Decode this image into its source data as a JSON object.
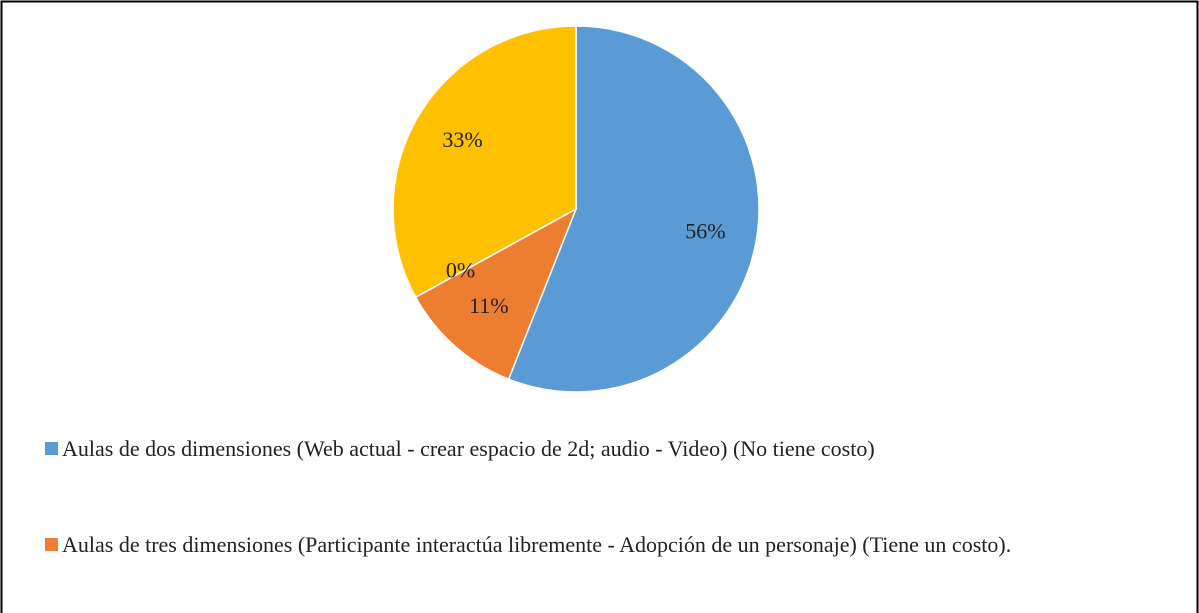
{
  "chart_data": {
    "type": "pie",
    "categories": [
      "Aulas de dos dimensiones (Web actual - crear espacio de 2d; audio - Video) (No tiene costo)",
      "Aulas de tres dimensiones (Participante interactúa libremente - Adopción de un personaje) (Tiene un costo).",
      null,
      null
    ],
    "values": [
      56,
      11,
      0,
      33
    ],
    "value_labels": [
      "56%",
      "11%",
      "0%",
      "33%"
    ],
    "colors": [
      "#5b9bd5",
      "#ed7d31",
      "#a5a5a5",
      "#ffc000"
    ],
    "legend": "bottom"
  }
}
